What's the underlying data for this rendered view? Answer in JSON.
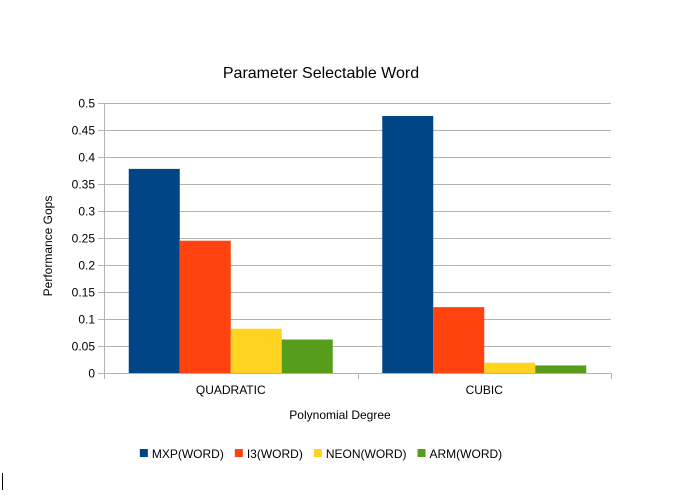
{
  "chart_data": {
    "type": "bar",
    "title": "Parameter Selectable Word",
    "xlabel": "Polynomial Degree",
    "ylabel": "Performance Gops",
    "categories": [
      "QUADRATIC",
      "CUBIC"
    ],
    "ylim": [
      0,
      0.5
    ],
    "yticks": [
      "0",
      "0.05",
      "0.1",
      "0.15",
      "0.2",
      "0.25",
      "0.3",
      "0.35",
      "0.4",
      "0.45",
      "0.5"
    ],
    "grid": true,
    "legend_position": "bottom",
    "series": [
      {
        "name": "MXP(WORD)",
        "color": "#004586",
        "values": [
          0.378,
          0.476
        ]
      },
      {
        "name": "I3(WORD)",
        "color": "#ff420e",
        "values": [
          0.245,
          0.122
        ]
      },
      {
        "name": "NEON(WORD)",
        "color": "#ffd320",
        "values": [
          0.082,
          0.019
        ]
      },
      {
        "name": "ARM(WORD)",
        "color": "#579d1c",
        "values": [
          0.062,
          0.014
        ]
      }
    ]
  }
}
